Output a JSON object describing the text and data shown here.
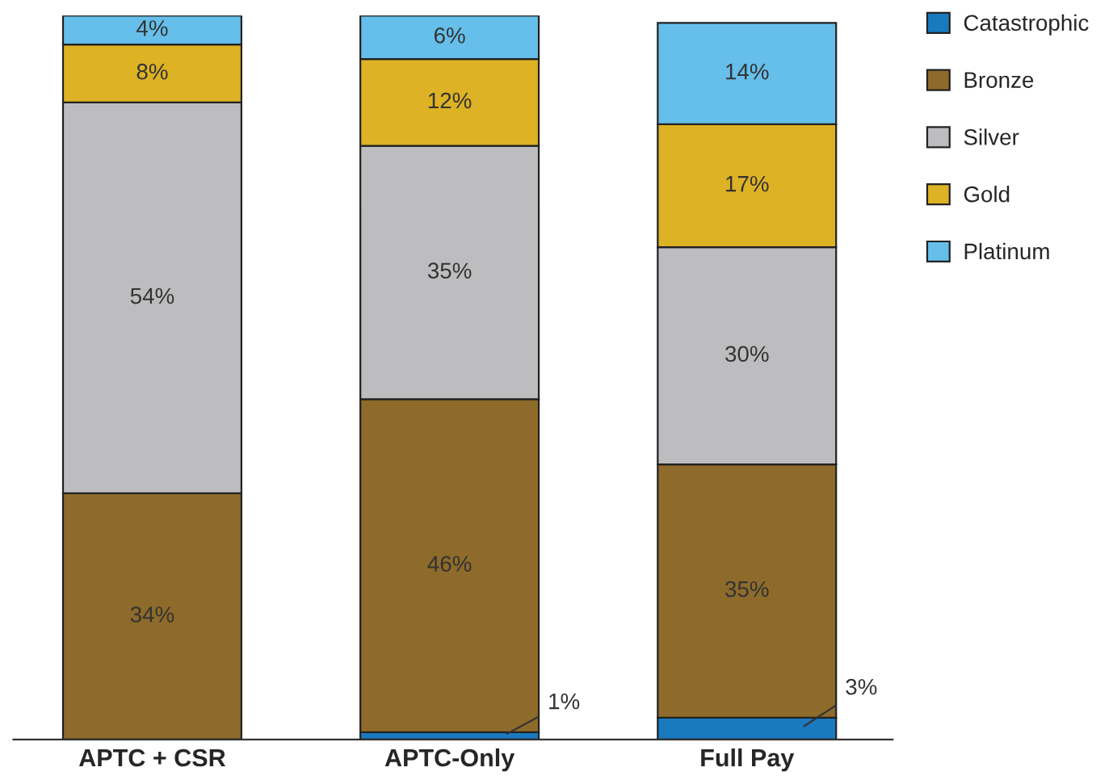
{
  "chart_data": {
    "type": "bar",
    "stacked": true,
    "categories": [
      "APTC + CSR",
      "APTC-Only",
      "Full Pay"
    ],
    "series": [
      {
        "name": "Catastrophic",
        "color": "#1a7abf",
        "values": [
          null,
          1,
          3
        ],
        "value_labels": [
          null,
          "1%",
          "3%"
        ]
      },
      {
        "name": "Bronze",
        "color": "#8e6b2a",
        "values": [
          34,
          46,
          35
        ],
        "value_labels": [
          "34%",
          "46%",
          "35%"
        ]
      },
      {
        "name": "Silver",
        "color": "#bdbdbf",
        "values": [
          54,
          35,
          30
        ],
        "value_labels": [
          "54%",
          "35%",
          "30%"
        ]
      },
      {
        "name": "Gold",
        "color": "#ddb225",
        "values": [
          8,
          12,
          17
        ],
        "value_labels": [
          "8%",
          "12%",
          "17%"
        ]
      },
      {
        "name": "Platinum",
        "color": "#66bfea",
        "values": [
          4,
          6,
          14
        ],
        "value_labels": [
          "4%",
          "6%",
          "14%"
        ]
      }
    ],
    "legend": "right",
    "grid": false
  }
}
